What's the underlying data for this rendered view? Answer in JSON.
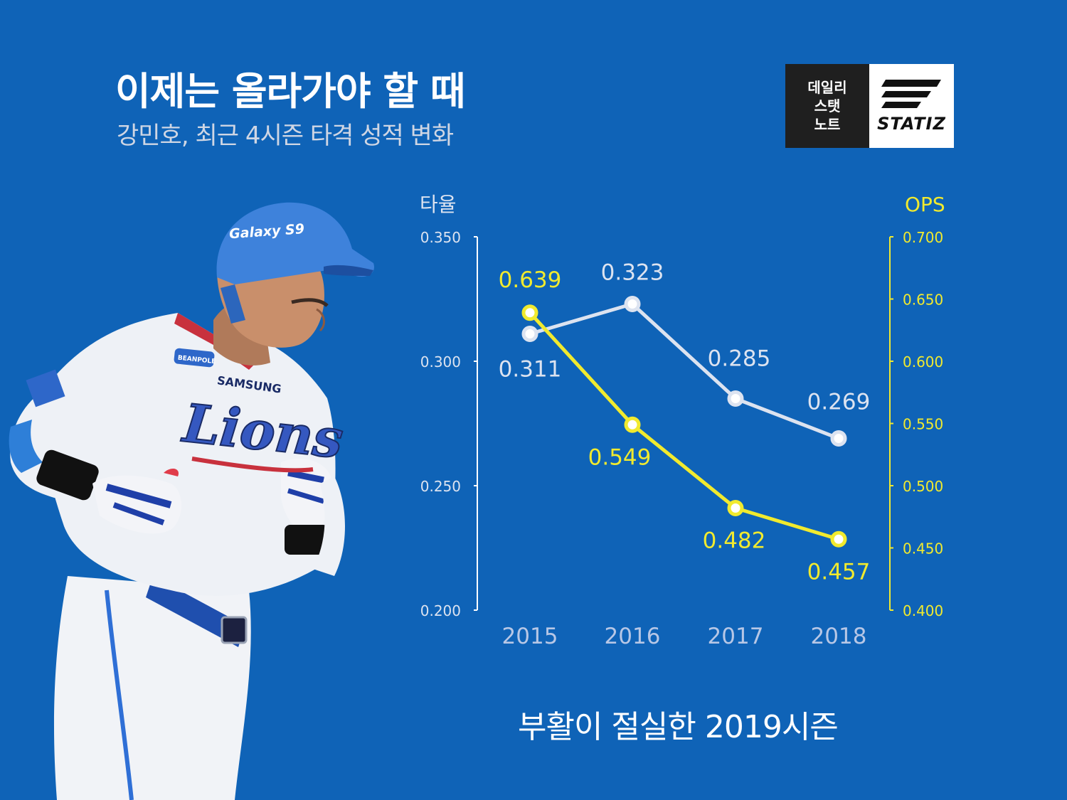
{
  "header": {
    "title": "이제는 올라가야 할 때",
    "subtitle": "강민호, 최근 4시즌 타격 성적 변화"
  },
  "logo": {
    "lines": [
      "데일리",
      "스탯",
      "노트"
    ],
    "brand": "STATIZ"
  },
  "player_photo": {
    "helmet_text": "Galaxy S9",
    "jersey_team": "SAMSUNG",
    "jersey_script": "Lions",
    "patch_text": "BEANPOLE"
  },
  "footer": {
    "text": "부활이 절실한 2019시즌"
  },
  "colors": {
    "background": "#0f63b7",
    "avg_line": "#dce3f0",
    "ops_line": "#f1ea2e",
    "avg_axis": "#ffffff",
    "ops_axis": "#f1ea2e"
  },
  "chart_data": {
    "type": "line",
    "x": [
      "2015",
      "2016",
      "2017",
      "2018"
    ],
    "y_left": {
      "label": "타율",
      "ylim": [
        0.2,
        0.35
      ],
      "ticks": [
        "0.350",
        "0.300",
        "0.250",
        "0.200"
      ]
    },
    "y_right": {
      "label": "OPS",
      "ylim": [
        0.4,
        0.7
      ],
      "ticks": [
        "0.700",
        "0.650",
        "0.600",
        "0.550",
        "0.500",
        "0.450",
        "0.400"
      ]
    },
    "series": [
      {
        "axis": "left",
        "values": [
          0.311,
          0.323,
          0.285,
          0.269
        ],
        "labels": [
          "0.311",
          "0.323",
          "0.285",
          "0.269"
        ]
      },
      {
        "axis": "right",
        "values": [
          0.639,
          0.549,
          0.482,
          0.457
        ],
        "labels": [
          "0.639",
          "0.549",
          "0.482",
          "0.457"
        ]
      }
    ],
    "grid": false
  }
}
